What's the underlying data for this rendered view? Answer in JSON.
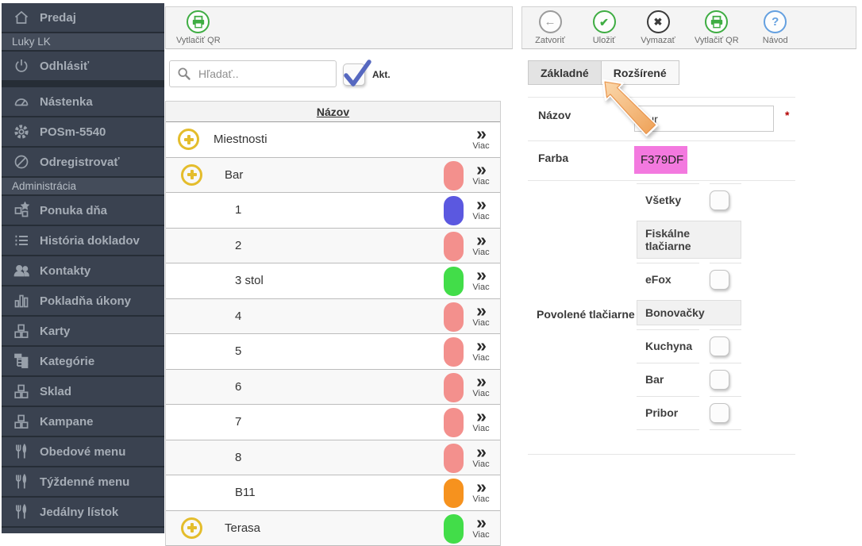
{
  "sidebar": {
    "items": [
      {
        "label": "Predaj",
        "icon": "home-icon",
        "type": "item"
      },
      {
        "label": "Luky LK",
        "type": "section"
      },
      {
        "label": "Odhlásiť",
        "icon": "power-icon",
        "type": "item",
        "gap_after": true
      },
      {
        "label": "Nástenka",
        "icon": "dashboard-icon",
        "type": "item"
      },
      {
        "label": "POSm-5540",
        "icon": "gear-icon",
        "type": "item"
      },
      {
        "label": "Odregistrovať",
        "icon": "ban-icon",
        "type": "item"
      },
      {
        "label": "Administrácia",
        "type": "section"
      },
      {
        "label": "Ponuka dňa",
        "icon": "cubes-star-icon",
        "type": "item"
      },
      {
        "label": "História dokladov",
        "icon": "list-icon",
        "type": "item"
      },
      {
        "label": "Kontakty",
        "icon": "users-icon",
        "type": "item"
      },
      {
        "label": "Pokladňa úkony",
        "icon": "bar-chart-icon",
        "type": "item"
      },
      {
        "label": "Karty",
        "icon": "cubes-icon",
        "type": "item"
      },
      {
        "label": "Kategórie",
        "icon": "sitemap-icon",
        "type": "item"
      },
      {
        "label": "Sklad",
        "icon": "cubes-icon",
        "type": "item"
      },
      {
        "label": "Kampane",
        "icon": "cubes-icon",
        "type": "item"
      },
      {
        "label": "Obedové menu",
        "icon": "cutlery-icon",
        "type": "item"
      },
      {
        "label": "Týždenné menu",
        "icon": "cutlery-icon",
        "type": "item"
      },
      {
        "label": "Jedálny lístok",
        "icon": "cutlery-icon",
        "type": "item"
      },
      {
        "label": "",
        "icon": "cutlery-icon",
        "type": "item"
      }
    ]
  },
  "toolbar_left": {
    "buttons": [
      {
        "label": "Vytlačiť QR",
        "icon": "printer-icon",
        "color": "#3fad43"
      }
    ]
  },
  "toolbar_right": {
    "buttons": [
      {
        "label": "Zatvoriť",
        "icon": "back-icon",
        "color": "#9b9b9b"
      },
      {
        "label": "Uložiť",
        "icon": "check-icon",
        "color": "#3fad43"
      },
      {
        "label": "Vymazať",
        "icon": "x-icon",
        "color": "#3b3b3b"
      },
      {
        "label": "Vytlačiť QR",
        "icon": "printer-icon",
        "color": "#3fad43"
      },
      {
        "label": "Návod",
        "icon": "question-icon",
        "color": "#64a0e0"
      }
    ]
  },
  "search": {
    "placeholder": "Hľadať..",
    "active_label": "Akt.",
    "checked": true,
    "check_color": "#5668c0"
  },
  "table": {
    "header": "Názov",
    "more_label": "Viac",
    "rows": [
      {
        "name": "Miestnosti",
        "level": 0,
        "expandable": true,
        "color": null
      },
      {
        "name": "Bar",
        "level": 1,
        "expandable": true,
        "color": "#f3908d"
      },
      {
        "name": "1",
        "level": 2,
        "expandable": false,
        "color": "#5b58e0"
      },
      {
        "name": "2",
        "level": 2,
        "expandable": false,
        "color": "#f3908d"
      },
      {
        "name": "3 stol",
        "level": 2,
        "expandable": false,
        "color": "#42dd49"
      },
      {
        "name": "4",
        "level": 2,
        "expandable": false,
        "color": "#f3908d"
      },
      {
        "name": "5",
        "level": 2,
        "expandable": false,
        "color": "#f3908d"
      },
      {
        "name": "6",
        "level": 2,
        "expandable": false,
        "color": "#f3908d"
      },
      {
        "name": "7",
        "level": 2,
        "expandable": false,
        "color": "#f3908d"
      },
      {
        "name": "8",
        "level": 2,
        "expandable": false,
        "color": "#f3908d"
      },
      {
        "name": "B11",
        "level": 2,
        "expandable": false,
        "color": "#f6921e"
      },
      {
        "name": "Terasa",
        "level": 1,
        "expandable": true,
        "color": "#42dd49"
      }
    ]
  },
  "form": {
    "tabs": [
      {
        "label": "Základné",
        "active": false
      },
      {
        "label": "Rozšírené",
        "active": true
      }
    ],
    "nazov": {
      "label": "Názov",
      "value": "Bur",
      "required_mark": "*"
    },
    "farba": {
      "label": "Farba",
      "value": "F379DF",
      "color": "#F379DF"
    },
    "printers": {
      "label": "Povolené tlačiarne",
      "items": [
        {
          "type": "checkbox",
          "label": "Všetky",
          "checked": false
        },
        {
          "type": "header",
          "label": "Fiskálne tlačiarne"
        },
        {
          "type": "checkbox",
          "label": "eFox",
          "checked": false
        },
        {
          "type": "header",
          "label": "Bonovačky"
        },
        {
          "type": "checkbox",
          "label": "Kuchyna",
          "checked": false
        },
        {
          "type": "checkbox",
          "label": "Bar",
          "checked": false
        },
        {
          "type": "checkbox",
          "label": "Pribor",
          "checked": false
        }
      ]
    }
  }
}
